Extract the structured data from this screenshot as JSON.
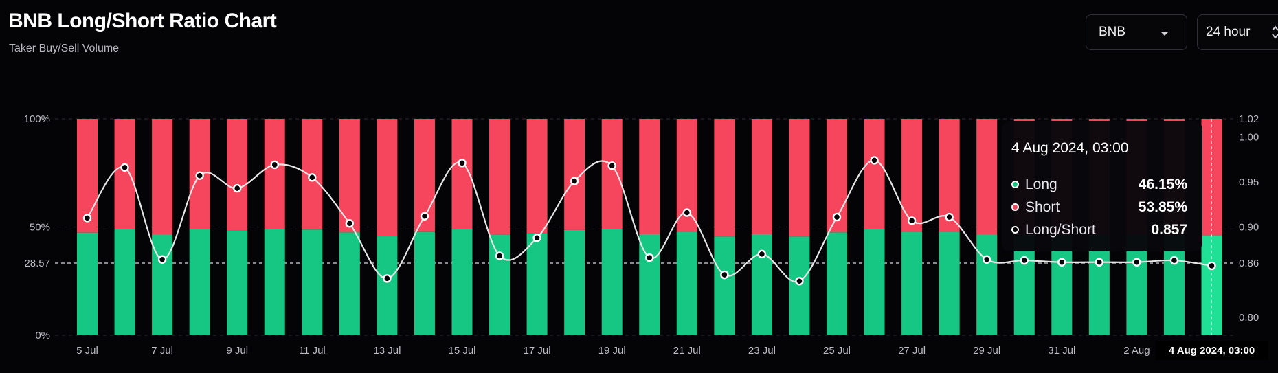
{
  "header": {
    "title": "BNB Long/Short Ratio Chart",
    "subtitle": "Taker Buy/Sell Volume"
  },
  "controls": {
    "coin": "BNB",
    "interval": "24 hour"
  },
  "tooltip": {
    "date": "4 Aug 2024, 03:00",
    "rows": [
      {
        "label": "Long",
        "value": "46.15%",
        "color": "#16c784"
      },
      {
        "label": "Short",
        "value": "53.85%",
        "color": "#f6465d"
      },
      {
        "label": "Long/Short",
        "value": "0.857",
        "color": "#ffffff"
      }
    ]
  },
  "colors": {
    "long": "#16c784",
    "short": "#f6465d",
    "line": "#e6e6e6",
    "grid": "#2a2a33",
    "axis_text": "#bcbcc4",
    "background": "#040407"
  },
  "chart_data": {
    "type": "bar",
    "stacked": true,
    "title": "BNB Long/Short Ratio Chart",
    "categories": [
      "5 Jul",
      "6 Jul",
      "7 Jul",
      "8 Jul",
      "9 Jul",
      "10 Jul",
      "11 Jul",
      "12 Jul",
      "13 Jul",
      "14 Jul",
      "15 Jul",
      "16 Jul",
      "17 Jul",
      "18 Jul",
      "19 Jul",
      "20 Jul",
      "21 Jul",
      "22 Jul",
      "23 Jul",
      "24 Jul",
      "25 Jul",
      "26 Jul",
      "27 Jul",
      "28 Jul",
      "29 Jul",
      "30 Jul",
      "31 Jul",
      "1 Aug",
      "2 Aug",
      "3 Aug",
      "4 Aug"
    ],
    "x_tick_labels": [
      "5 Jul",
      "7 Jul",
      "9 Jul",
      "11 Jul",
      "13 Jul",
      "15 Jul",
      "17 Jul",
      "19 Jul",
      "21 Jul",
      "23 Jul",
      "25 Jul",
      "27 Jul",
      "29 Jul",
      "31 Jul",
      "2 Aug"
    ],
    "x_highlight_label": "4 Aug 2024, 03:00",
    "series": [
      {
        "name": "Long",
        "values": [
          47.4,
          49.1,
          46.5,
          49.0,
          48.5,
          49.2,
          48.8,
          47.5,
          45.7,
          47.7,
          49.1,
          46.6,
          47.2,
          48.6,
          49.2,
          46.7,
          47.9,
          45.6,
          46.7,
          45.6,
          47.5,
          49.1,
          47.8,
          47.9,
          46.5,
          46.3,
          46.3,
          46.3,
          46.3,
          46.2,
          46.15
        ]
      },
      {
        "name": "Short",
        "values": [
          52.6,
          50.9,
          53.5,
          51.0,
          51.5,
          50.8,
          51.2,
          52.5,
          54.3,
          52.3,
          50.9,
          53.4,
          52.8,
          51.4,
          50.8,
          53.3,
          52.1,
          54.4,
          53.3,
          54.4,
          52.5,
          50.9,
          52.2,
          52.1,
          53.5,
          53.7,
          53.7,
          53.7,
          53.7,
          53.8,
          53.85
        ]
      },
      {
        "name": "Long/Short",
        "axis": "right",
        "values": [
          0.91,
          0.966,
          0.864,
          0.957,
          0.943,
          0.969,
          0.955,
          0.904,
          0.843,
          0.912,
          0.971,
          0.868,
          0.888,
          0.951,
          0.968,
          0.866,
          0.916,
          0.847,
          0.87,
          0.84,
          0.911,
          0.974,
          0.907,
          0.911,
          0.864,
          0.863,
          0.861,
          0.861,
          0.861,
          0.863,
          0.857
        ]
      }
    ],
    "y_left": {
      "ticks": [
        "100%",
        "50%",
        "28.57",
        "0%"
      ],
      "range": [
        0,
        100
      ]
    },
    "y_right": {
      "ticks": [
        "1.02",
        "1.00",
        "0.95",
        "0.90",
        "0.86",
        "0.80"
      ],
      "range": [
        0.78,
        1.02
      ]
    },
    "reference_line": {
      "label_left": "28.57",
      "label_right": "0.86"
    },
    "grid": true,
    "legend": "tooltip"
  }
}
